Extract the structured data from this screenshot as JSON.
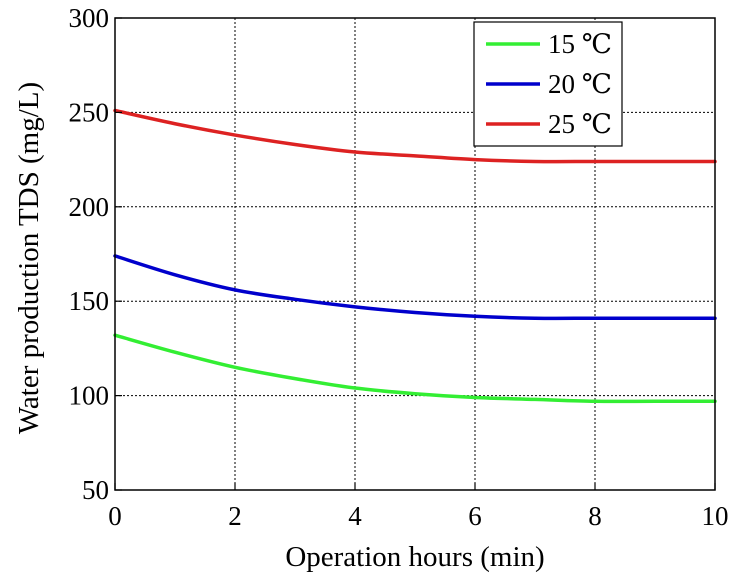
{
  "chart_data": {
    "type": "line",
    "title": "",
    "xlabel": "Operation hours (min)",
    "ylabel": "Water production TDS (mg/L)",
    "xlim": [
      0,
      10
    ],
    "ylim": [
      50,
      300
    ],
    "xticks": [
      "0",
      "2",
      "4",
      "6",
      "8",
      "10"
    ],
    "yticks": [
      "50",
      "100",
      "150",
      "200",
      "250",
      "300"
    ],
    "grid": true,
    "legend_position": "top-right",
    "x": [
      0,
      1,
      2,
      3,
      4,
      5,
      6,
      7,
      8,
      9,
      10
    ],
    "series": [
      {
        "name": "15 ℃",
        "color": "#33ee33",
        "values": [
          132,
          123,
          115,
          109,
          104,
          101,
          99,
          98,
          97,
          97,
          97
        ]
      },
      {
        "name": "20 ℃",
        "color": "#0000cc",
        "values": [
          174,
          164,
          156,
          151,
          147,
          144,
          142,
          141,
          141,
          141,
          141
        ]
      },
      {
        "name": "25 ℃",
        "color": "#dd2222",
        "values": [
          251,
          244,
          238,
          233,
          229,
          227,
          225,
          224,
          224,
          224,
          224
        ]
      }
    ]
  }
}
